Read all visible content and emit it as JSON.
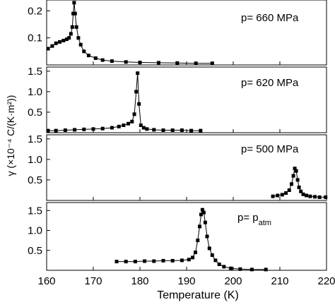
{
  "chart_data": {
    "type": "scatter",
    "xlabel": "Temperature (K)",
    "ylabel": "γ (×10⁻⁴ C/(K·m²))",
    "xlim": [
      160,
      220
    ],
    "x_ticks": [
      "160",
      "170",
      "180",
      "190",
      "200",
      "210",
      "220"
    ],
    "grid": false,
    "panels": [
      {
        "label": "p= 660 MPa",
        "ylim": [
          0,
          0.24
        ],
        "y_ticks": [
          "0.1",
          "0.2"
        ],
        "y_tick_values": [
          0.1,
          0.2
        ],
        "series": [
          {
            "x": [
              160.3,
              161.2,
              162.0,
              162.8,
              163.6,
              164.3,
              164.8,
              165.2,
              165.5,
              165.7,
              165.9,
              166.1,
              166.4,
              166.8,
              167.3,
              168.0,
              169.0,
              170.5,
              172.0,
              174.0,
              177.0,
              180.0,
              184.0,
              188.0,
              192.0,
              195.5
            ],
            "y": [
              0.06,
              0.07,
              0.08,
              0.085,
              0.09,
              0.095,
              0.1,
              0.115,
              0.14,
              0.19,
              0.23,
              0.19,
              0.14,
              0.1,
              0.075,
              0.05,
              0.035,
              0.025,
              0.018,
              0.014,
              0.011,
              0.009,
              0.008,
              0.007,
              0.006,
              0.006
            ]
          }
        ]
      },
      {
        "label": "p= 620 MPa",
        "ylim": [
          0,
          1.6
        ],
        "y_ticks": [
          "0.5",
          "1.0",
          "1.5"
        ],
        "y_tick_values": [
          0.5,
          1.0,
          1.5
        ],
        "series": [
          {
            "x": [
              160.3,
              162.0,
              164.0,
              166.0,
              168.0,
              170.0,
              172.0,
              174.0,
              175.5,
              176.5,
              177.5,
              178.3,
              178.8,
              179.2,
              179.5,
              179.8,
              180.2,
              180.8,
              181.5,
              183.0,
              185.0,
              187.0,
              189.0,
              191.0,
              193.0
            ],
            "y": [
              0.05,
              0.05,
              0.06,
              0.07,
              0.08,
              0.09,
              0.1,
              0.12,
              0.15,
              0.18,
              0.22,
              0.27,
              0.45,
              1.0,
              1.45,
              0.7,
              0.18,
              0.12,
              0.09,
              0.07,
              0.06,
              0.06,
              0.06,
              0.05,
              0.05
            ]
          }
        ]
      },
      {
        "label": "p= 500 MPa",
        "ylim": [
          0,
          1.6
        ],
        "y_ticks": [
          "0.5",
          "1.0",
          "1.5"
        ],
        "y_tick_values": [
          0.5,
          1.0,
          1.5
        ],
        "series": [
          {
            "x": [
              208.5,
              209.5,
              210.5,
              211.3,
              212.0,
              212.5,
              212.9,
              213.2,
              213.5,
              213.8,
              214.1,
              214.5,
              215.0,
              215.7,
              216.5,
              217.5,
              218.5,
              219.8
            ],
            "y": [
              0.1,
              0.12,
              0.14,
              0.18,
              0.25,
              0.4,
              0.6,
              0.78,
              0.72,
              0.5,
              0.32,
              0.22,
              0.15,
              0.12,
              0.1,
              0.09,
              0.08,
              0.08
            ]
          }
        ]
      },
      {
        "label": "p= p",
        "label_subscript": "atm",
        "ylim": [
          0,
          1.7
        ],
        "y_ticks": [
          "0.5",
          "1.0",
          "1.5"
        ],
        "y_tick_values": [
          0.5,
          1.0,
          1.5
        ],
        "series": [
          {
            "x": [
              175.0,
              177.0,
              179.0,
              181.0,
              183.0,
              185.0,
              187.0,
              189.0,
              190.5,
              191.3,
              191.9,
              192.4,
              192.8,
              193.1,
              193.4,
              193.7,
              194.0,
              194.4,
              194.9,
              195.5,
              196.2,
              197.0,
              198.0,
              199.5,
              201.5,
              204.0,
              207.0
            ],
            "y": [
              0.22,
              0.22,
              0.22,
              0.23,
              0.23,
              0.24,
              0.24,
              0.25,
              0.27,
              0.32,
              0.45,
              0.75,
              1.1,
              1.4,
              1.52,
              1.45,
              1.2,
              0.85,
              0.55,
              0.38,
              0.25,
              0.15,
              0.09,
              0.05,
              0.03,
              0.02,
              0.02
            ]
          }
        ]
      }
    ]
  }
}
